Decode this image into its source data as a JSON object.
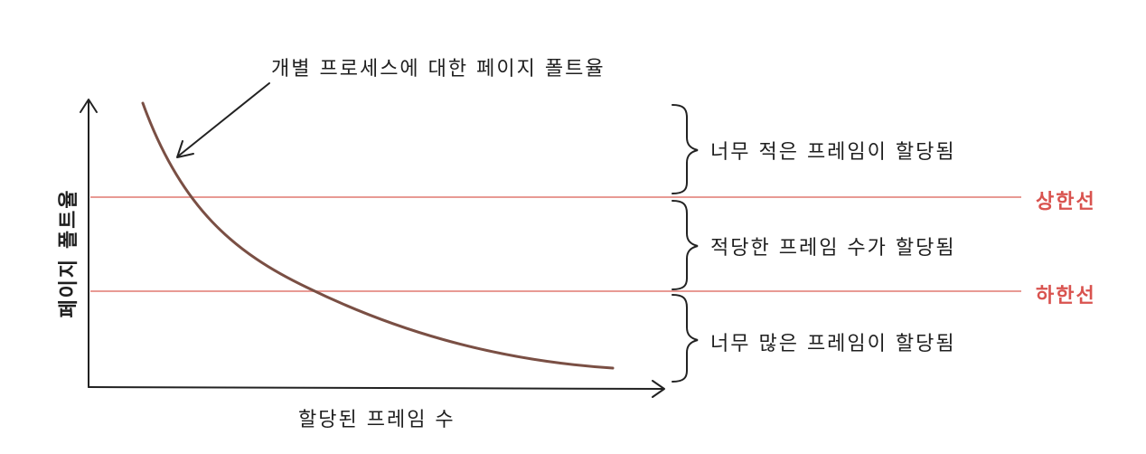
{
  "diagram": {
    "curve_label": "개별 프로세스에 대한 페이지 폴트율",
    "axes": {
      "x_label": "할당된 프레임 수",
      "y_label": "페이지 폴트율"
    },
    "thresholds": {
      "upper_label": "상한선",
      "lower_label": "하한선",
      "line_color": "#e89a94",
      "label_color": "#d9534f"
    },
    "bands": {
      "top": "너무 적은 프레임이 할당됨",
      "middle": "적당한 프레임 수가 할당됨",
      "bottom": "너무 많은 프레임이 할당됨"
    },
    "curve_color": "#7a4f44"
  }
}
